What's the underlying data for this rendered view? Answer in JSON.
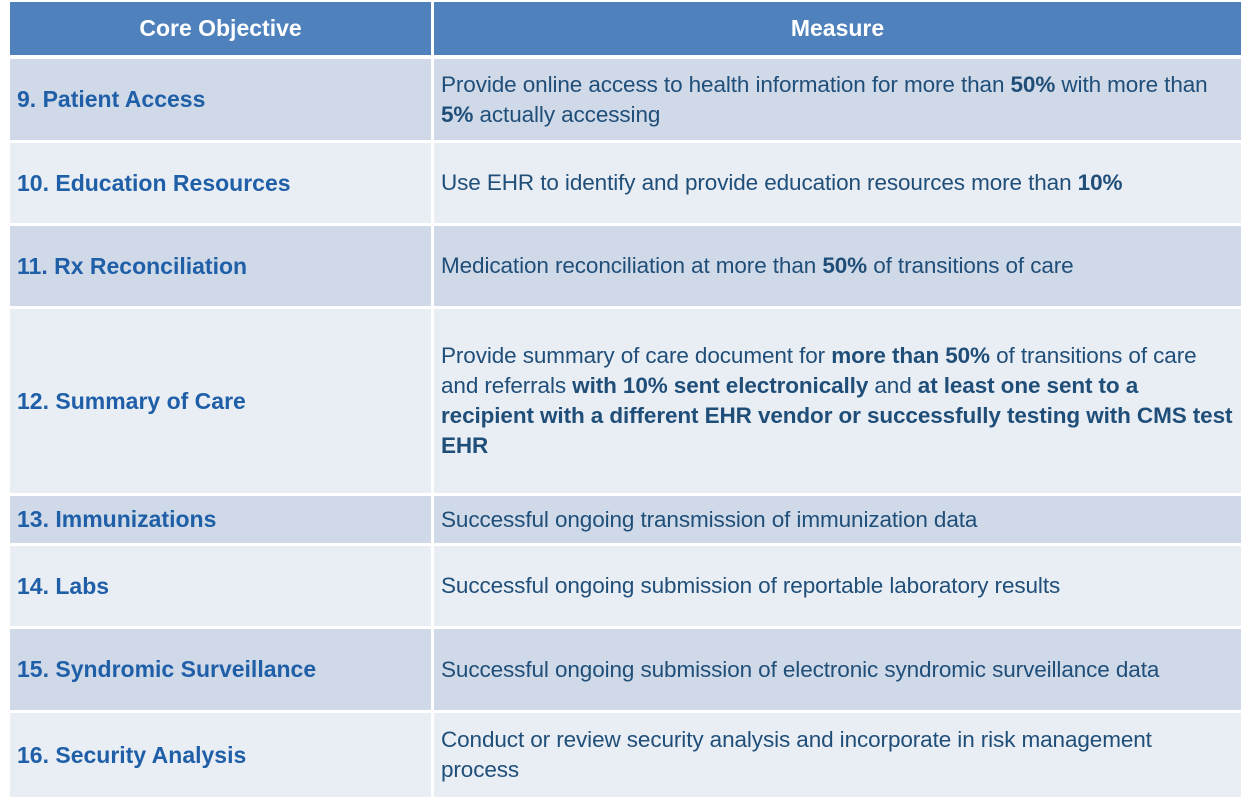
{
  "header": {
    "col1": "Core Objective",
    "col2": "Measure"
  },
  "rows": [
    {
      "objective": "9. Patient Access",
      "measure": [
        {
          "t": "Provide online access to health information for more than ",
          "b": false
        },
        {
          "t": "50%",
          "b": true
        },
        {
          "t": " with more than ",
          "b": false
        },
        {
          "t": "5%",
          "b": true
        },
        {
          "t": " actually accessing",
          "b": false
        }
      ]
    },
    {
      "objective": "10. Education Resources",
      "measure": [
        {
          "t": "Use EHR to identify and provide education resources more than ",
          "b": false
        },
        {
          "t": "10%",
          "b": true
        }
      ]
    },
    {
      "objective": "11. Rx Reconciliation",
      "measure": [
        {
          "t": "Medication reconciliation at more than ",
          "b": false
        },
        {
          "t": "50%",
          "b": true
        },
        {
          "t": " of transitions of care",
          "b": false
        }
      ]
    },
    {
      "objective": "12. Summary of Care",
      "measure": [
        {
          "t": "Provide summary of care document for ",
          "b": false
        },
        {
          "t": "more than 50%",
          "b": true
        },
        {
          "t": " of transitions of care and referrals ",
          "b": false
        },
        {
          "t": "with 10% sent electronically",
          "b": true
        },
        {
          "t": " and ",
          "b": false
        },
        {
          "t": "at least one sent to a recipient with a different EHR vendor or successfully testing with CMS test EHR",
          "b": true
        }
      ]
    },
    {
      "objective": "13. Immunizations",
      "measure": [
        {
          "t": "Successful ongoing transmission of immunization data",
          "b": false
        }
      ]
    },
    {
      "objective": "14. Labs",
      "measure": [
        {
          "t": "Successful ongoing submission of reportable laboratory results",
          "b": false
        }
      ]
    },
    {
      "objective": "15. Syndromic Surveillance",
      "measure": [
        {
          "t": "Successful ongoing submission of electronic syndromic surveillance data",
          "b": false
        }
      ]
    },
    {
      "objective": "16. Security Analysis",
      "measure": [
        {
          "t": "Conduct or review security analysis and incorporate in risk management process",
          "b": false
        }
      ]
    }
  ],
  "colors": {
    "header_bg": "#4f81bd",
    "row_dark": "#d0d9e8",
    "row_light": "#e9edf4",
    "objective_text": "#1f5fa8",
    "measure_text": "#1f4e79"
  }
}
